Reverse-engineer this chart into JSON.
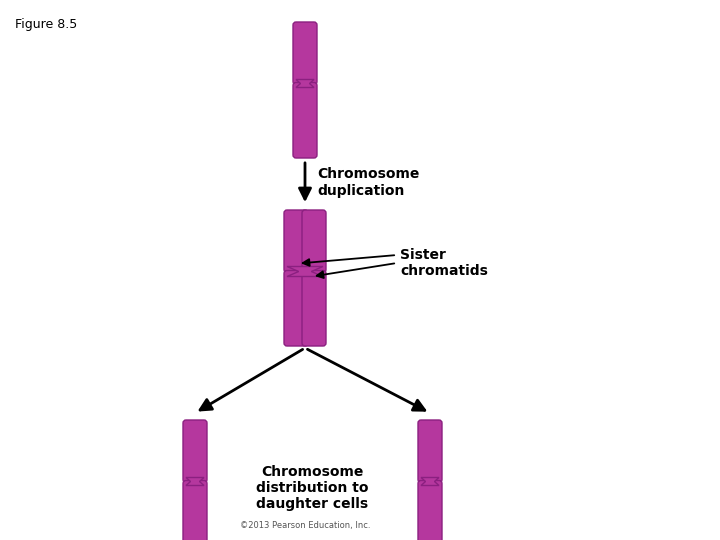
{
  "figure_label": "Figure 8.5",
  "copyright": "©2013 Pearson Education, Inc.",
  "chrom_color": "#b5379e",
  "chrom_edge": "#8b2080",
  "bg_color": "#ffffff",
  "text_color": "#000000",
  "label_duplication": "Chromosome\nduplication",
  "label_sister": "Sister\nchromatids",
  "label_distribution": "Chromosome\ndistribution to\ndaughter cells",
  "fig_width": 7.2,
  "fig_height": 5.4,
  "dpi": 100
}
